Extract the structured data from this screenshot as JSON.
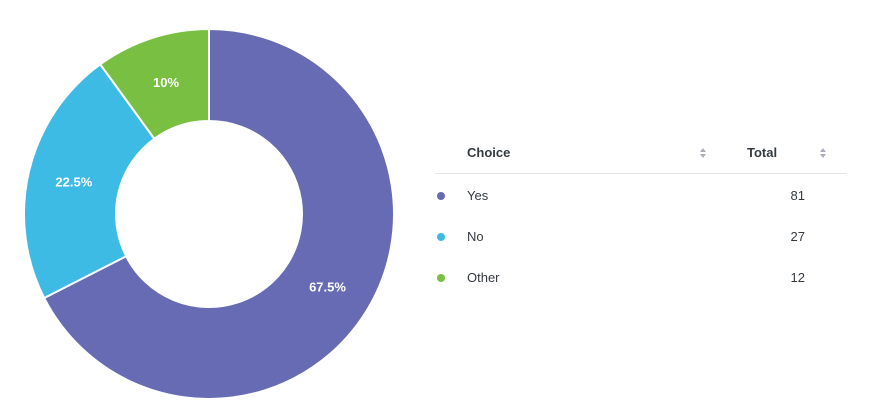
{
  "chart_data": {
    "type": "pie",
    "style": "donut",
    "categories": [
      "Yes",
      "No",
      "Other"
    ],
    "values": [
      81,
      27,
      12
    ],
    "percent_labels": [
      "67.5%",
      "22.5%",
      "10%"
    ],
    "colors": [
      "#676bb3",
      "#3dbbe4",
      "#79c042"
    ]
  },
  "table": {
    "headers": {
      "choice": "Choice",
      "total": "Total"
    },
    "rows": [
      {
        "label": "Yes",
        "total": "81",
        "color": "#676bb3"
      },
      {
        "label": "No",
        "total": "27",
        "color": "#3dbbe4"
      },
      {
        "label": "Other",
        "total": "12",
        "color": "#79c042"
      }
    ]
  }
}
